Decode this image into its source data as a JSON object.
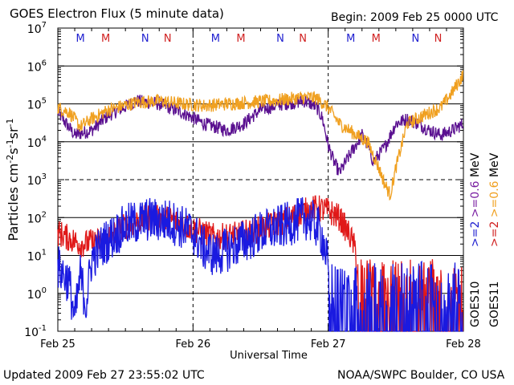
{
  "header": {
    "title": "GOES Electron Flux (5 minute data)",
    "begin": "Begin: 2009 Feb 25 0000 UTC"
  },
  "footer": {
    "updated": "Updated 2009 Feb 27 23:55:02 UTC",
    "credit": "NOAA/SWPC Boulder, CO USA"
  },
  "chart_data": {
    "type": "line",
    "title": "GOES Electron Flux (5 minute data)",
    "xlabel": "Universal Time",
    "ylabel": "Particles cm-2s-1sr-1",
    "ylabel_parts": {
      "main": "Particles cm",
      "e1": "-2",
      "s": "s",
      "e2": "-1",
      "sr": "sr",
      "e3": "-1"
    },
    "y_scale": "log",
    "ylim": [
      0.1,
      10000000
    ],
    "y_ticks": [
      {
        "base": "10",
        "exp": "7"
      },
      {
        "base": "10",
        "exp": "6"
      },
      {
        "base": "10",
        "exp": "5"
      },
      {
        "base": "10",
        "exp": "4"
      },
      {
        "base": "10",
        "exp": "3"
      },
      {
        "base": "10",
        "exp": "2"
      },
      {
        "base": "10",
        "exp": "1"
      },
      {
        "base": "10",
        "exp": "0"
      },
      {
        "base": "10",
        "exp": "-1"
      }
    ],
    "xlim": [
      "2009-02-25 00:00",
      "2009-02-28 00:00"
    ],
    "x_ticks": [
      "Feb 25",
      "Feb 26",
      "Feb 27",
      "Feb 28"
    ],
    "marker_labels": [
      {
        "day": 0,
        "hour": 4.0,
        "label": "M",
        "color": "#2020d0"
      },
      {
        "day": 0,
        "hour": 8.5,
        "label": "M",
        "color": "#d02020"
      },
      {
        "day": 0,
        "hour": 15.5,
        "label": "N",
        "color": "#2020d0"
      },
      {
        "day": 0,
        "hour": 19.5,
        "label": "N",
        "color": "#d02020"
      },
      {
        "day": 1,
        "hour": 4.0,
        "label": "M",
        "color": "#2020d0"
      },
      {
        "day": 1,
        "hour": 8.5,
        "label": "M",
        "color": "#d02020"
      },
      {
        "day": 1,
        "hour": 15.5,
        "label": "N",
        "color": "#2020d0"
      },
      {
        "day": 1,
        "hour": 19.5,
        "label": "N",
        "color": "#d02020"
      },
      {
        "day": 2,
        "hour": 4.0,
        "label": "M",
        "color": "#2020d0"
      },
      {
        "day": 2,
        "hour": 8.5,
        "label": "M",
        "color": "#d02020"
      },
      {
        "day": 2,
        "hour": 15.5,
        "label": "N",
        "color": "#2020d0"
      },
      {
        "day": 2,
        "hour": 19.5,
        "label": "N",
        "color": "#d02020"
      }
    ],
    "legend": {
      "placement": "right",
      "columns": [
        {
          "satellite": "GOES10",
          "entries": [
            {
              "label": ">=2",
              "color": "#2020d0"
            },
            {
              "label": ">=0.6",
              "color": "#7a1fa2"
            },
            {
              "label": "MeV",
              "color": "#000000"
            }
          ]
        },
        {
          "satellite": "GOES11",
          "entries": [
            {
              "label": ">=2",
              "color": "#d02020"
            },
            {
              "label": ">=0.6",
              "color": "#f0a020"
            },
            {
              "label": "MeV",
              "color": "#000000"
            }
          ]
        }
      ]
    },
    "series": [
      {
        "name": "GOES10 >=0.6 MeV",
        "color": "#5a1090",
        "noise": 0.06,
        "x": [
          0,
          3,
          6,
          9,
          14,
          18,
          22,
          26,
          30,
          33,
          36,
          40,
          44,
          46,
          47,
          48,
          49,
          50,
          52,
          54,
          55,
          56,
          58,
          60,
          62,
          64,
          66,
          68,
          70,
          72
        ],
        "y": [
          60000,
          15000,
          20000,
          50000,
          120000,
          100000,
          60000,
          30000,
          20000,
          30000,
          70000,
          100000,
          120000,
          80000,
          40000,
          8000,
          3000,
          1500,
          5000,
          15000,
          8000,
          3000,
          7000,
          30000,
          40000,
          30000,
          20000,
          15000,
          20000,
          30000
        ]
      },
      {
        "name": "GOES11 >=0.6 MeV",
        "color": "#f0a020",
        "noise": 0.06,
        "x": [
          0,
          2,
          4,
          6,
          9,
          14,
          18,
          22,
          26,
          30,
          34,
          38,
          42,
          44,
          46,
          48,
          50,
          53,
          55,
          57,
          58,
          59,
          60,
          62,
          65,
          68,
          70,
          72
        ],
        "y": [
          80000,
          60000,
          25000,
          40000,
          70000,
          110000,
          120000,
          100000,
          90000,
          100000,
          110000,
          120000,
          140000,
          150000,
          140000,
          80000,
          30000,
          15000,
          10000,
          2000,
          800,
          400,
          2000,
          30000,
          50000,
          80000,
          200000,
          600000
        ]
      },
      {
        "name": "GOES11 >=2 MeV",
        "color": "#e01818",
        "noise": 0.12,
        "drop_after": 53,
        "x": [
          0,
          4,
          8,
          12,
          16,
          20,
          24,
          28,
          32,
          36,
          40,
          44,
          46,
          48,
          50,
          52,
          54,
          56,
          60,
          64,
          68,
          72
        ],
        "y": [
          40,
          20,
          25,
          60,
          100,
          90,
          50,
          30,
          35,
          50,
          80,
          150,
          180,
          150,
          100,
          30,
          5,
          0.5,
          0.3,
          0.5,
          0.5,
          0.3
        ]
      },
      {
        "name": "GOES10 >=2 MeV",
        "color": "#1a1ae0",
        "noise": 0.2,
        "drop_after": 48,
        "x": [
          0,
          2,
          3,
          4,
          5,
          6,
          8,
          12,
          16,
          20,
          24,
          26,
          28,
          32,
          36,
          40,
          44,
          46,
          47,
          48,
          50,
          54,
          60,
          66,
          72
        ],
        "y": [
          5,
          2,
          0.2,
          3,
          0.5,
          8,
          20,
          60,
          90,
          80,
          40,
          15,
          10,
          20,
          40,
          60,
          100,
          60,
          30,
          5,
          0.5,
          0.3,
          0.3,
          0.3,
          0.3
        ]
      }
    ]
  }
}
